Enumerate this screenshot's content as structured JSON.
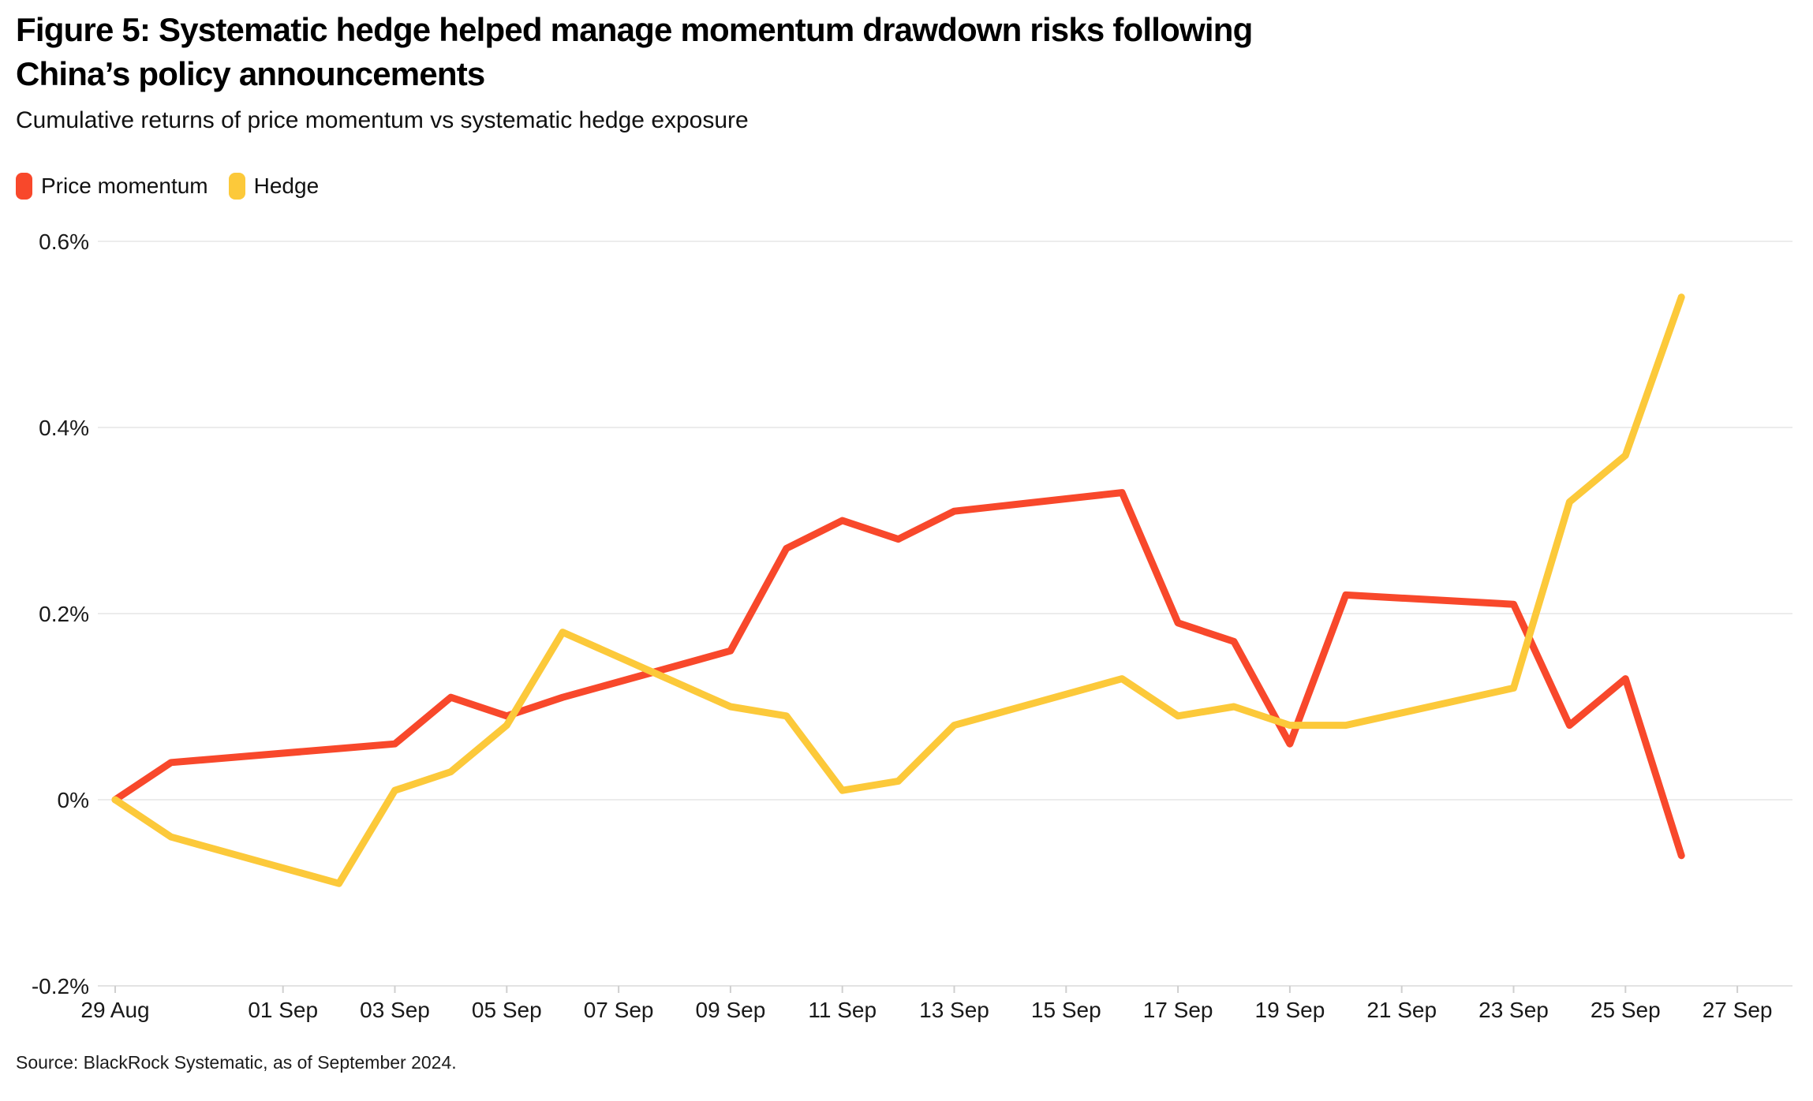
{
  "title_line1": "Figure 5: Systematic hedge helped manage momentum drawdown risks following",
  "title_line2": "China’s policy announcements",
  "subtitle": "Cumulative returns of price momentum vs systematic hedge exposure",
  "source": "Source: BlackRock Systematic, as of September 2024.",
  "legend": {
    "items": [
      {
        "label": "Price momentum",
        "color": "#F8482B"
      },
      {
        "label": "Hedge",
        "color": "#FCC93A"
      }
    ]
  },
  "colors": {
    "momentum": "#F8482B",
    "hedge": "#FCC93A",
    "gridline": "#ECECEC",
    "axis_line": "#E3E3E3",
    "tick": "#CFCFCF",
    "label_text": "#191919"
  },
  "chart_data": {
    "type": "line",
    "title": "Figure 5: Systematic hedge helped manage momentum drawdown risks following China’s policy announcements",
    "subtitle": "Cumulative returns of price momentum vs systematic hedge exposure",
    "unit": "percent",
    "ylim": [
      -0.2,
      0.6
    ],
    "grid": "horizontal",
    "legend_position": "top-left",
    "y_ticks": [
      {
        "value": 0.6,
        "label": "0.6%"
      },
      {
        "value": 0.4,
        "label": "0.4%"
      },
      {
        "value": 0.2,
        "label": "0.2%"
      },
      {
        "value": 0.0,
        "label": "0%"
      },
      {
        "value": -0.2,
        "label": "-0.2%"
      }
    ],
    "x_ticks": [
      {
        "label": "29 Aug",
        "day_offset": 0
      },
      {
        "label": "01 Sep",
        "day_offset": 3
      },
      {
        "label": "03 Sep",
        "day_offset": 5
      },
      {
        "label": "05 Sep",
        "day_offset": 7
      },
      {
        "label": "07 Sep",
        "day_offset": 9
      },
      {
        "label": "09 Sep",
        "day_offset": 11
      },
      {
        "label": "11 Sep",
        "day_offset": 13
      },
      {
        "label": "13 Sep",
        "day_offset": 15
      },
      {
        "label": "15 Sep",
        "day_offset": 17
      },
      {
        "label": "17 Sep",
        "day_offset": 19
      },
      {
        "label": "19 Sep",
        "day_offset": 21
      },
      {
        "label": "21 Sep",
        "day_offset": 23
      },
      {
        "label": "23 Sep",
        "day_offset": 25
      },
      {
        "label": "25 Sep",
        "day_offset": 27
      },
      {
        "label": "27 Sep",
        "day_offset": 29
      }
    ],
    "point_dates": [
      "29 Aug",
      "30 Aug",
      "02 Sep",
      "03 Sep",
      "04 Sep",
      "05 Sep",
      "06 Sep",
      "09 Sep",
      "10 Sep",
      "11 Sep",
      "12 Sep",
      "13 Sep",
      "16 Sep",
      "17 Sep",
      "18 Sep",
      "19 Sep",
      "20 Sep",
      "23 Sep",
      "24 Sep",
      "25 Sep",
      "26 Sep"
    ],
    "point_day_offsets": [
      0,
      1,
      4,
      5,
      6,
      7,
      8,
      11,
      12,
      13,
      14,
      15,
      18,
      19,
      20,
      21,
      22,
      25,
      26,
      27,
      28
    ],
    "series": [
      {
        "name": "Price momentum",
        "color": "#F8482B",
        "values": [
          0.0,
          0.04,
          0.055,
          0.06,
          0.11,
          0.09,
          0.11,
          0.16,
          0.27,
          0.3,
          0.28,
          0.31,
          0.33,
          0.19,
          0.17,
          0.06,
          0.22,
          0.21,
          0.08,
          0.13,
          -0.06
        ]
      },
      {
        "name": "Hedge",
        "color": "#FCC93A",
        "values": [
          0.0,
          -0.04,
          -0.09,
          0.01,
          0.03,
          0.08,
          0.18,
          0.1,
          0.09,
          0.01,
          0.02,
          0.08,
          0.13,
          0.09,
          0.1,
          0.08,
          0.08,
          0.12,
          0.32,
          0.37,
          0.54
        ]
      }
    ]
  }
}
